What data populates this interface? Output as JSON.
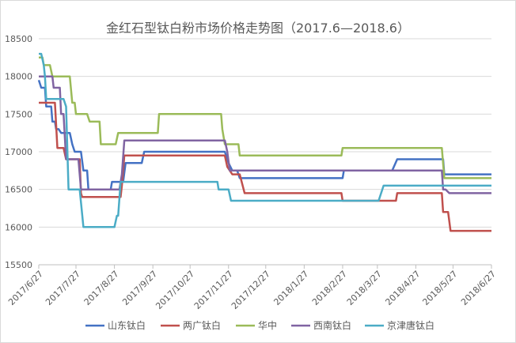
{
  "chart_data": {
    "type": "line",
    "title": "金红石型钛白粉市场价格走势图（2017.6—2018.6）",
    "ylim": [
      15500,
      18500
    ],
    "yticks": [
      15500,
      16000,
      16500,
      17000,
      17500,
      18000,
      18500
    ],
    "xticks": [
      "2017/6/27",
      "2017/7/27",
      "2017/8/27",
      "2017/9/27",
      "2017/10/27",
      "2017/11/27",
      "2017/12/27",
      "2018/1/27",
      "2018/2/27",
      "2018/3/27",
      "2018/4/27",
      "2018/5/27",
      "2018/6/27"
    ],
    "grid": "horizontal",
    "legend_position": "bottom",
    "series": [
      {
        "name": "山东钛白",
        "color": "#4472c4",
        "points": [
          [
            "2017/6/27",
            17950
          ],
          [
            "2017/6/29",
            17850
          ],
          [
            "2017/7/2",
            17850
          ],
          [
            "2017/7/3",
            17600
          ],
          [
            "2017/7/7",
            17600
          ],
          [
            "2017/7/8",
            17400
          ],
          [
            "2017/7/10",
            17400
          ],
          [
            "2017/7/11",
            17300
          ],
          [
            "2017/7/13",
            17300
          ],
          [
            "2017/7/15",
            17250
          ],
          [
            "2017/7/22",
            17250
          ],
          [
            "2017/7/24",
            17100
          ],
          [
            "2017/7/26",
            17000
          ],
          [
            "2017/7/31",
            17000
          ],
          [
            "2017/8/2",
            16750
          ],
          [
            "2017/8/5",
            16750
          ],
          [
            "2017/8/6",
            16500
          ],
          [
            "2017/8/24",
            16500
          ],
          [
            "2017/8/25",
            16600
          ],
          [
            "2017/9/3",
            16600
          ],
          [
            "2017/9/5",
            16850
          ],
          [
            "2017/9/18",
            16850
          ],
          [
            "2017/9/20",
            17000
          ],
          [
            "2017/11/24",
            17000
          ],
          [
            "2017/11/27",
            16850
          ],
          [
            "2017/11/30",
            16750
          ],
          [
            "2017/12/4",
            16750
          ],
          [
            "2017/12/6",
            16650
          ],
          [
            "2018/2/27",
            16650
          ],
          [
            "2018/2/28",
            16750
          ],
          [
            "2018/4/8",
            16750
          ],
          [
            "2018/4/12",
            16900
          ],
          [
            "2018/5/19",
            16900
          ],
          [
            "2018/5/20",
            16700
          ],
          [
            "2018/6/27",
            16700
          ]
        ]
      },
      {
        "name": "两广钛白",
        "color": "#c0504d",
        "points": [
          [
            "2017/6/27",
            17650
          ],
          [
            "2017/7/10",
            17650
          ],
          [
            "2017/7/12",
            17050
          ],
          [
            "2017/7/17",
            17050
          ],
          [
            "2017/7/19",
            16900
          ],
          [
            "2017/7/30",
            16900
          ],
          [
            "2017/7/31",
            16450
          ],
          [
            "2017/8/1",
            16400
          ],
          [
            "2017/9/1",
            16400
          ],
          [
            "2017/9/2",
            16550
          ],
          [
            "2017/9/4",
            16950
          ],
          [
            "2017/11/24",
            16950
          ],
          [
            "2017/11/26",
            16800
          ],
          [
            "2017/11/30",
            16700
          ],
          [
            "2017/12/6",
            16700
          ],
          [
            "2017/12/10",
            16450
          ],
          [
            "2018/2/26",
            16450
          ],
          [
            "2018/2/27",
            16350
          ],
          [
            "2018/4/11",
            16350
          ],
          [
            "2018/4/12",
            16450
          ],
          [
            "2018/5/18",
            16450
          ],
          [
            "2018/5/19",
            16200
          ],
          [
            "2018/5/23",
            16200
          ],
          [
            "2018/5/25",
            15950
          ],
          [
            "2018/6/27",
            15950
          ]
        ]
      },
      {
        "name": "华中",
        "color": "#9bbb59",
        "points": [
          [
            "2017/6/27",
            18250
          ],
          [
            "2017/6/30",
            18250
          ],
          [
            "2017/7/1",
            18150
          ],
          [
            "2017/7/6",
            18150
          ],
          [
            "2017/7/8",
            18000
          ],
          [
            "2017/7/22",
            18000
          ],
          [
            "2017/7/24",
            17650
          ],
          [
            "2017/7/26",
            17650
          ],
          [
            "2017/7/27",
            17500
          ],
          [
            "2017/8/5",
            17500
          ],
          [
            "2017/8/7",
            17400
          ],
          [
            "2017/8/15",
            17400
          ],
          [
            "2017/8/16",
            17100
          ],
          [
            "2017/8/28",
            17100
          ],
          [
            "2017/8/30",
            17250
          ],
          [
            "2017/10/1",
            17250
          ],
          [
            "2017/10/2",
            17500
          ],
          [
            "2017/11/21",
            17500
          ],
          [
            "2017/11/22",
            17300
          ],
          [
            "2017/11/24",
            17100
          ],
          [
            "2017/12/5",
            17100
          ],
          [
            "2017/12/6",
            16950
          ],
          [
            "2018/2/26",
            16950
          ],
          [
            "2018/2/27",
            17050
          ],
          [
            "2018/5/18",
            17050
          ],
          [
            "2018/5/20",
            16650
          ],
          [
            "2018/6/27",
            16650
          ]
        ]
      },
      {
        "name": "西南钛白",
        "color": "#8064a2",
        "points": [
          [
            "2017/6/27",
            18000
          ],
          [
            "2017/7/8",
            18000
          ],
          [
            "2017/7/9",
            17850
          ],
          [
            "2017/7/14",
            17850
          ],
          [
            "2017/7/15",
            17500
          ],
          [
            "2017/7/17",
            17500
          ],
          [
            "2017/7/19",
            16900
          ],
          [
            "2017/7/29",
            16900
          ],
          [
            "2017/7/31",
            16500
          ],
          [
            "2017/8/31",
            16500
          ],
          [
            "2017/9/2",
            16700
          ],
          [
            "2017/9/4",
            17150
          ],
          [
            "2017/11/24",
            17150
          ],
          [
            "2017/11/26",
            17000
          ],
          [
            "2017/11/28",
            16750
          ],
          [
            "2018/5/18",
            16750
          ],
          [
            "2018/5/19",
            16500
          ],
          [
            "2018/5/21",
            16500
          ],
          [
            "2018/5/24",
            16450
          ],
          [
            "2018/6/27",
            16450
          ]
        ]
      },
      {
        "name": "京津唐钛白",
        "color": "#4bacc6",
        "points": [
          [
            "2017/6/27",
            18300
          ],
          [
            "2017/6/29",
            18300
          ],
          [
            "2017/7/1",
            18150
          ],
          [
            "2017/7/2",
            18000
          ],
          [
            "2017/7/3",
            17700
          ],
          [
            "2017/7/17",
            17700
          ],
          [
            "2017/7/19",
            17600
          ],
          [
            "2017/7/21",
            16500
          ],
          [
            "2017/7/30",
            16500
          ],
          [
            "2017/8/2",
            16000
          ],
          [
            "2017/8/27",
            16000
          ],
          [
            "2017/8/29",
            16150
          ],
          [
            "2017/8/30",
            16150
          ],
          [
            "2017/9/1",
            16600
          ],
          [
            "2017/11/18",
            16600
          ],
          [
            "2017/11/19",
            16500
          ],
          [
            "2017/11/27",
            16500
          ],
          [
            "2017/11/29",
            16350
          ],
          [
            "2018/3/28",
            16350
          ],
          [
            "2018/4/1",
            16550
          ],
          [
            "2018/6/27",
            16550
          ]
        ]
      }
    ]
  }
}
